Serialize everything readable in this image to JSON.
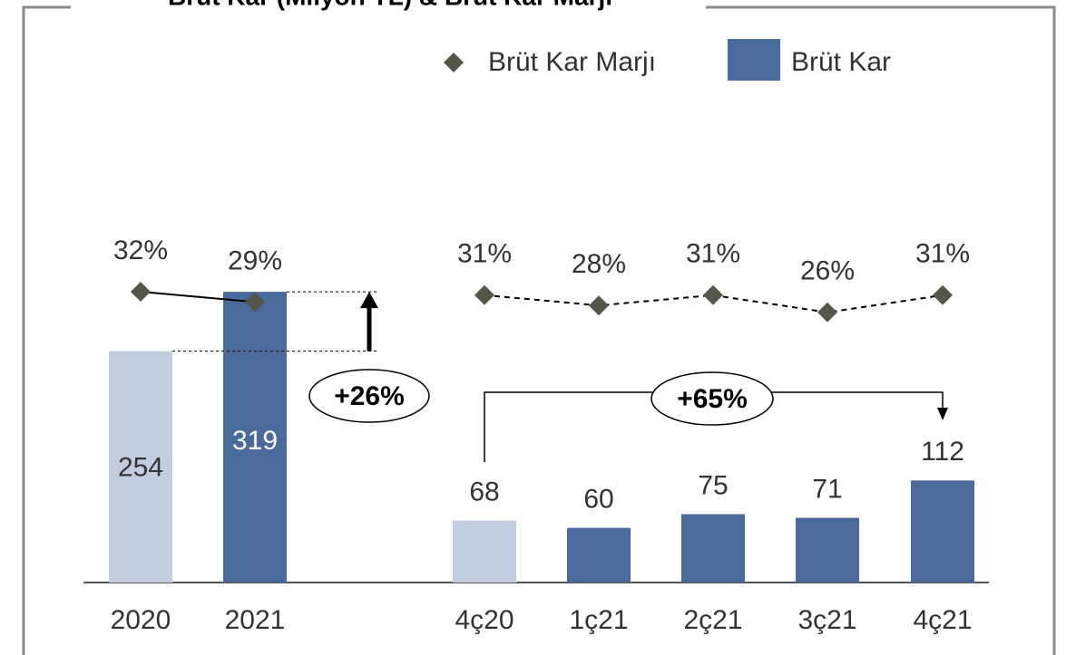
{
  "chart_data": {
    "type": "bar",
    "title": "Brüt Kar (Milyon TL) & Brüt Kar Marjı",
    "categories": [
      "2020",
      "2021",
      "4ç20",
      "1ç21",
      "2ç21",
      "3ç21",
      "4ç21"
    ],
    "series": [
      {
        "name": "Brüt Kar",
        "color": "#4a6a9b",
        "colors": [
          "#c2cde0",
          "#4a6a9b",
          "#c2cde0",
          "#4a6a9b",
          "#4a6a9b",
          "#4a6a9b",
          "#4a6a9b"
        ],
        "values": [
          254,
          319,
          68,
          60,
          75,
          71,
          112
        ]
      },
      {
        "name": "Brüt Kar Marjı",
        "type": "line",
        "color": "#555548",
        "values": [
          32,
          29,
          31,
          28,
          31,
          26,
          31
        ],
        "value_labels": [
          "32%",
          "29%",
          "31%",
          "28%",
          "31%",
          "26%",
          "31%"
        ]
      }
    ],
    "annotations": [
      "+26%",
      "+65%"
    ]
  }
}
